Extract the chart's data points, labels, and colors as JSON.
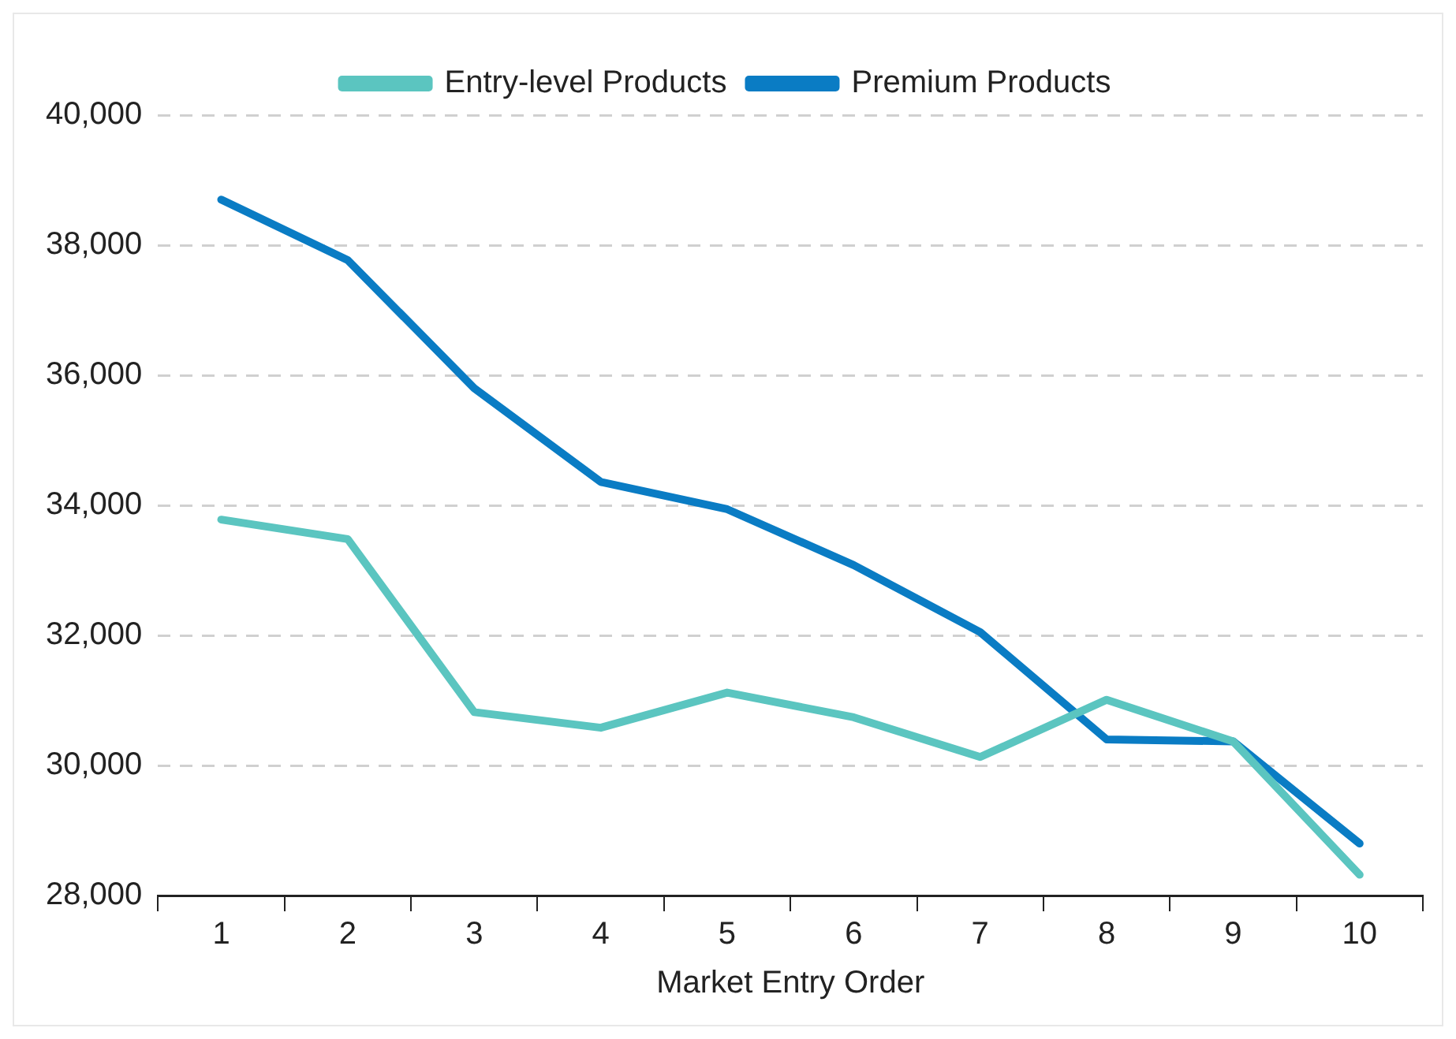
{
  "chart_data": {
    "type": "line",
    "xlabel": "Market Entry Order",
    "categories": [
      "1",
      "2",
      "3",
      "4",
      "5",
      "6",
      "7",
      "8",
      "9",
      "10"
    ],
    "series": [
      {
        "name": "Entry-level Products",
        "color": "#5bc5c0",
        "values": [
          33780,
          33480,
          30820,
          30580,
          31120,
          30740,
          30130,
          31010,
          30370,
          28320
        ]
      },
      {
        "name": "Premium Products",
        "color": "#0a7cc4",
        "values": [
          38700,
          37770,
          35800,
          34360,
          33940,
          33080,
          32050,
          30400,
          30370,
          28800
        ]
      }
    ],
    "ylim": [
      28000,
      40000
    ],
    "yticks": [
      {
        "value": 28000,
        "label": "28,000"
      },
      {
        "value": 30000,
        "label": "30,000"
      },
      {
        "value": 32000,
        "label": "32,000"
      },
      {
        "value": 34000,
        "label": "34,000"
      },
      {
        "value": 36000,
        "label": "36,000"
      },
      {
        "value": 38000,
        "label": "38,000"
      },
      {
        "value": 40000,
        "label": "40,000"
      }
    ],
    "grid": "y",
    "legend": "top",
    "marker": "none",
    "line_style": "solid"
  }
}
